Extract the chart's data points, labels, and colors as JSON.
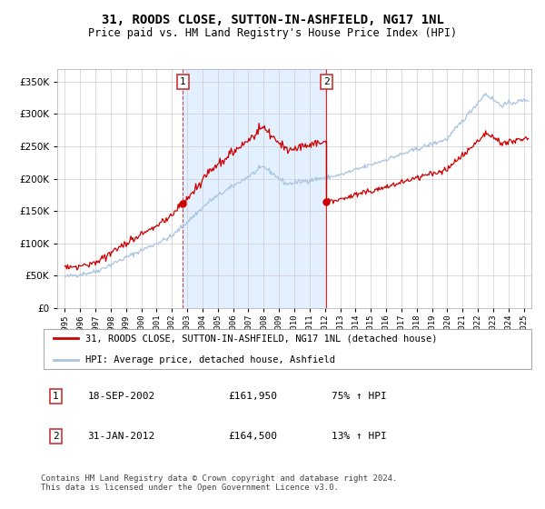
{
  "title": "31, ROODS CLOSE, SUTTON-IN-ASHFIELD, NG17 1NL",
  "subtitle": "Price paid vs. HM Land Registry's House Price Index (HPI)",
  "legend_line1": "31, ROODS CLOSE, SUTTON-IN-ASHFIELD, NG17 1NL (detached house)",
  "legend_line2": "HPI: Average price, detached house, Ashfield",
  "footer": "Contains HM Land Registry data © Crown copyright and database right 2024.\nThis data is licensed under the Open Government Licence v3.0.",
  "transaction1_date": "18-SEP-2002",
  "transaction1_price": "£161,950",
  "transaction1_hpi": "75% ↑ HPI",
  "transaction2_date": "31-JAN-2012",
  "transaction2_price": "£164,500",
  "transaction2_hpi": "13% ↑ HPI",
  "hpi_line_color": "#aac4e0",
  "price_line_color": "#cc0000",
  "bg_shade_color": "#ddeeff",
  "marker1_x": 2002.72,
  "marker1_y": 161950,
  "marker2_x": 2012.08,
  "marker2_y": 164500,
  "ylim": [
    0,
    370000
  ],
  "xlim": [
    1994.5,
    2025.5
  ],
  "title_fontsize": 10,
  "subtitle_fontsize": 8.5
}
